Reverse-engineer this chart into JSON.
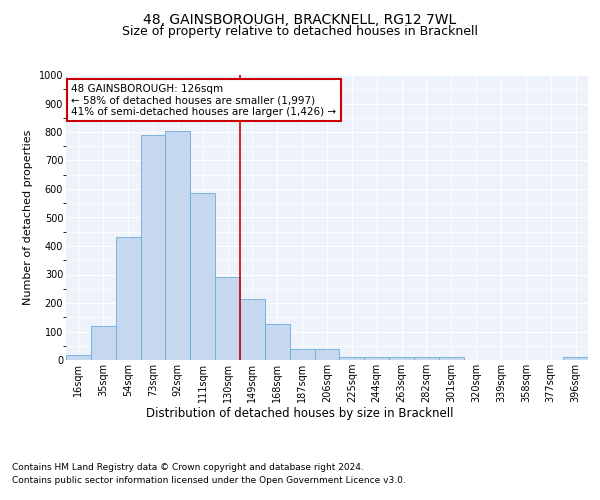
{
  "title": "48, GAINSBOROUGH, BRACKNELL, RG12 7WL",
  "subtitle": "Size of property relative to detached houses in Bracknell",
  "xlabel": "Distribution of detached houses by size in Bracknell",
  "ylabel": "Number of detached properties",
  "categories": [
    "16sqm",
    "35sqm",
    "54sqm",
    "73sqm",
    "92sqm",
    "111sqm",
    "130sqm",
    "149sqm",
    "168sqm",
    "187sqm",
    "206sqm",
    "225sqm",
    "244sqm",
    "263sqm",
    "282sqm",
    "301sqm",
    "320sqm",
    "339sqm",
    "358sqm",
    "377sqm",
    "396sqm"
  ],
  "values": [
    18,
    120,
    430,
    790,
    805,
    585,
    290,
    215,
    125,
    40,
    40,
    12,
    12,
    10,
    10,
    10,
    0,
    0,
    0,
    0,
    10
  ],
  "bar_color": "#c5d8f0",
  "bar_edge_color": "#6aaed6",
  "vline_color": "#cc0000",
  "vline_pos": 6.5,
  "annotation_text": "48 GAINSBOROUGH: 126sqm\n← 58% of detached houses are smaller (1,997)\n41% of semi-detached houses are larger (1,426) →",
  "annotation_box_color": "#ffffff",
  "annotation_box_edge_color": "#cc0000",
  "ylim": [
    0,
    1000
  ],
  "yticks": [
    0,
    100,
    200,
    300,
    400,
    500,
    600,
    700,
    800,
    900,
    1000
  ],
  "bg_color": "#eef2fb",
  "footer_line1": "Contains HM Land Registry data © Crown copyright and database right 2024.",
  "footer_line2": "Contains public sector information licensed under the Open Government Licence v3.0.",
  "title_fontsize": 10,
  "subtitle_fontsize": 9,
  "xlabel_fontsize": 8.5,
  "ylabel_fontsize": 8,
  "tick_fontsize": 7,
  "annotation_fontsize": 7.5,
  "footer_fontsize": 6.5
}
